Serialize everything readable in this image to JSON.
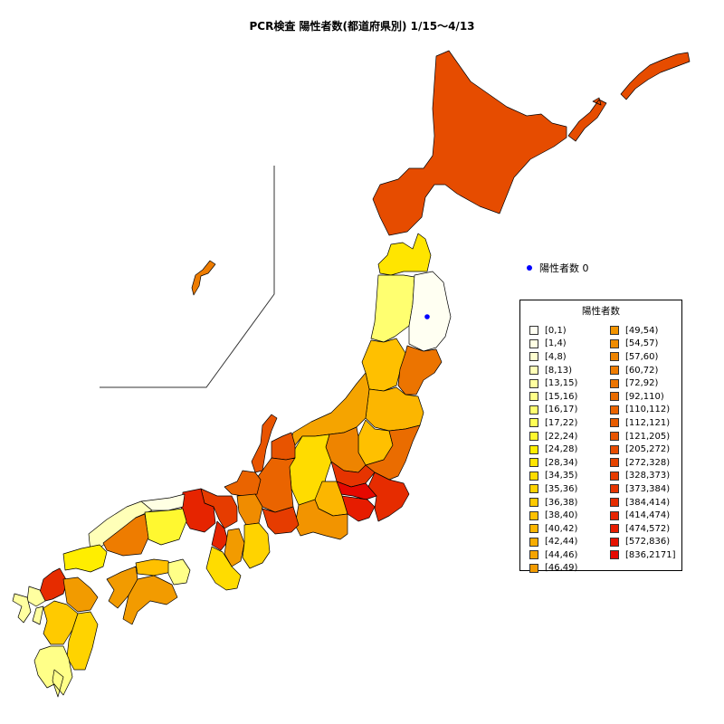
{
  "title": "PCR検査 陽性者数(都道府県別) 1/15〜4/13",
  "zero_note": "陽性者数 0",
  "legend": {
    "title": "陽性者数",
    "bins": [
      {
        "label": "[0,1)",
        "color": "#FFFFF2"
      },
      {
        "label": "[1,4)",
        "color": "#FFFFE3"
      },
      {
        "label": "[4,8)",
        "color": "#FFFFD0"
      },
      {
        "label": "[8,13)",
        "color": "#FFFFB8"
      },
      {
        "label": "[13,15)",
        "color": "#FFFFA0"
      },
      {
        "label": "[15,16)",
        "color": "#FFFF88"
      },
      {
        "label": "[16,17)",
        "color": "#FFFF70"
      },
      {
        "label": "[17,22)",
        "color": "#FFFF55"
      },
      {
        "label": "[22,24)",
        "color": "#FFF830"
      },
      {
        "label": "[24,28)",
        "color": "#FFEE00"
      },
      {
        "label": "[28,34)",
        "color": "#FFE500"
      },
      {
        "label": "[34,35)",
        "color": "#FFDC00"
      },
      {
        "label": "[35,36)",
        "color": "#FFD300"
      },
      {
        "label": "[36,38)",
        "color": "#FFCA00"
      },
      {
        "label": "[38,40)",
        "color": "#FFC000"
      },
      {
        "label": "[40,42)",
        "color": "#FCB600"
      },
      {
        "label": "[42,44)",
        "color": "#F8AD00"
      },
      {
        "label": "[44,46)",
        "color": "#F5A400"
      },
      {
        "label": "[46,49)",
        "color": "#F29B00"
      },
      {
        "label": "[49,54)",
        "color": "#F29400"
      },
      {
        "label": "[54,57)",
        "color": "#F08C00"
      },
      {
        "label": "[57,60)",
        "color": "#EE8400"
      },
      {
        "label": "[60,72)",
        "color": "#EE7C00"
      },
      {
        "label": "[72,92)",
        "color": "#EC7400"
      },
      {
        "label": "[92,110)",
        "color": "#EA6C00"
      },
      {
        "label": "[110,112)",
        "color": "#EA6400"
      },
      {
        "label": "[112,121)",
        "color": "#E85C00"
      },
      {
        "label": "[121,205)",
        "color": "#E85400"
      },
      {
        "label": "[205,272)",
        "color": "#E64C00"
      },
      {
        "label": "[272,328)",
        "color": "#E64400"
      },
      {
        "label": "[328,373)",
        "color": "#E63C00"
      },
      {
        "label": "[373,384)",
        "color": "#E63400"
      },
      {
        "label": "[384,414)",
        "color": "#E62C00"
      },
      {
        "label": "[414,474)",
        "color": "#E62400"
      },
      {
        "label": "[474,572)",
        "color": "#E61C00"
      },
      {
        "label": "[572,836)",
        "color": "#E61200"
      },
      {
        "label": "[836,2171]",
        "color": "#E60800"
      }
    ]
  },
  "prefectures": [
    {
      "name": "hokkaido",
      "bin": 28
    },
    {
      "name": "aomori",
      "bin": 10
    },
    {
      "name": "iwate",
      "bin": 0
    },
    {
      "name": "akita",
      "bin": 6
    },
    {
      "name": "miyagi",
      "bin": 23
    },
    {
      "name": "yamagata",
      "bin": 14
    },
    {
      "name": "fukushima",
      "bin": 15
    },
    {
      "name": "niigata",
      "bin": 17
    },
    {
      "name": "ibaraki",
      "bin": 24
    },
    {
      "name": "tochigi",
      "bin": 14
    },
    {
      "name": "gunma",
      "bin": 21
    },
    {
      "name": "saitama",
      "bin": 31
    },
    {
      "name": "chiba",
      "bin": 32
    },
    {
      "name": "tokyo",
      "bin": 36
    },
    {
      "name": "kanagawa",
      "bin": 34
    },
    {
      "name": "yamanashi",
      "bin": 15
    },
    {
      "name": "nagano",
      "bin": 11
    },
    {
      "name": "toyama",
      "bin": 27
    },
    {
      "name": "ishikawa",
      "bin": 27
    },
    {
      "name": "fukui",
      "bin": 25
    },
    {
      "name": "gifu",
      "bin": 25
    },
    {
      "name": "shizuoka",
      "bin": 19
    },
    {
      "name": "aichi",
      "bin": 30
    },
    {
      "name": "mie",
      "bin": 12
    },
    {
      "name": "shiga",
      "bin": 20
    },
    {
      "name": "kyoto",
      "bin": 30
    },
    {
      "name": "osaka",
      "bin": 33
    },
    {
      "name": "hyogo",
      "bin": 33
    },
    {
      "name": "nara",
      "bin": 18
    },
    {
      "name": "wakayama",
      "bin": 11
    },
    {
      "name": "tottori",
      "bin": 1
    },
    {
      "name": "shimane",
      "bin": 3
    },
    {
      "name": "okayama",
      "bin": 8
    },
    {
      "name": "hiroshima",
      "bin": 22
    },
    {
      "name": "yamaguchi",
      "bin": 9
    },
    {
      "name": "tokushima",
      "bin": 5
    },
    {
      "name": "kagawa",
      "bin": 14
    },
    {
      "name": "ehime",
      "bin": 18
    },
    {
      "name": "kochi",
      "bin": 18
    },
    {
      "name": "fukuoka",
      "bin": 32
    },
    {
      "name": "saga",
      "bin": 4
    },
    {
      "name": "nagasaki",
      "bin": 4
    },
    {
      "name": "kumamoto",
      "bin": 13
    },
    {
      "name": "oita",
      "bin": 18
    },
    {
      "name": "miyazaki",
      "bin": 12
    },
    {
      "name": "kagoshima",
      "bin": 5
    },
    {
      "name": "okinawa",
      "bin": 22
    }
  ]
}
